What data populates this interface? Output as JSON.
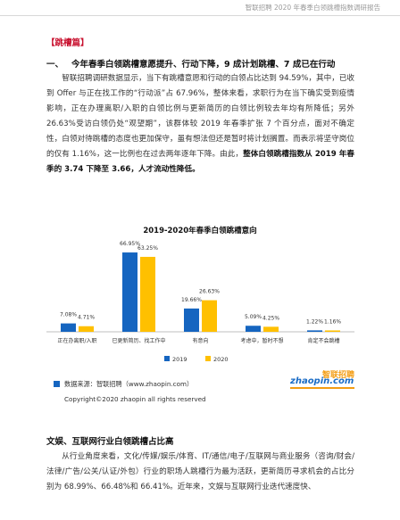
{
  "header": {
    "text": "智联招聘 2020 年春季白领跳槽指数调研报告"
  },
  "section_tag": "【跳槽篇】",
  "heading": {
    "number": "一、",
    "text": "今年春季白领跳槽意愿提升、行动下降，9 成计划跳槽、7 成已在行动"
  },
  "paragraph1": {
    "text_a": "智联招聘调研数据显示，当下有跳槽意愿和行动的白领占比达到 94.59%，其中，已收到 Offer 与正在找工作的“行动派”占 67.96%，整体来看，求职行为在当下确实受到疫情影响，正在办理离职/入职的白领比例与更新简历的白领比例较去年均有所降低；另外 26.63%受访白领仍处“观望期”，该群体较 2019 年春季扩张 7 个百分点，面对不确定性，白领对待跳槽的态度也更加保守，虽有想法但还是暂时将计划搁置。而表示将坚守岗位的仅有 1.16%，这一比例也在过去两年逐年下降。由此，",
    "bold_b": "整体白领跳槽指数从 2019 年春季的 3.74 下降至 3.66，人才流动性降低。"
  },
  "chart_data": {
    "type": "bar",
    "title": "2019-2020年春季白领跳槽意向",
    "categories": [
      "正在办离职/入职",
      "已更新简历、找工作中",
      "有意向",
      "考虑中，暂时不想",
      "肯定不会跳槽"
    ],
    "series": [
      {
        "name": "2019",
        "color": "#1565c0",
        "values": [
          7.08,
          66.95,
          19.66,
          5.09,
          1.22
        ]
      },
      {
        "name": "2020",
        "color": "#ffc000",
        "values": [
          4.71,
          63.25,
          26.63,
          4.25,
          1.16
        ]
      }
    ],
    "value_labels": [
      [
        "7.08%",
        "66.95%",
        "19.66%",
        "5.09%",
        "1.22%"
      ],
      [
        "4.71%",
        "63.25%",
        "26.63%",
        "4.25%",
        "1.16%"
      ]
    ],
    "ylim": [
      0,
      70
    ],
    "grid": false,
    "legend": "bottom"
  },
  "source": {
    "text": "数据来源：智联招聘（www.zhaopin.com）"
  },
  "copyright": "Copyright©2020 zhaopin all rights reserved",
  "logo": {
    "main": "zhaopin.com",
    "cn": "智联招聘"
  },
  "sub_heading": "文娱、互联网行业白领跳槽占比高",
  "paragraph2": {
    "text": "从行业角度来看，文化/传媒/娱乐/体育、IT/通信/电子/互联网与商业服务（咨询/财会/法律/广告/公关/认证/外包）行业的职场人跳槽行为最为活跃，更新简历寻求机会的占比分别为 68.99%、66.48%和 66.41%。近年来，文娱与互联网行业迭代速度快、"
  }
}
